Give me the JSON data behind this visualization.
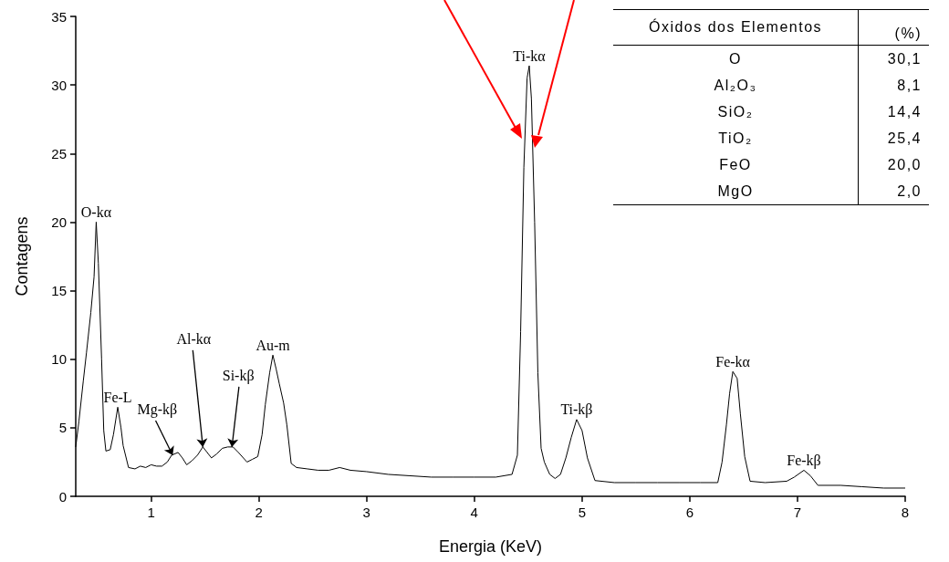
{
  "chart_data": [
    {
      "type": "line",
      "xlabel": "Energia (KeV)",
      "ylabel": "Contagens",
      "x": [
        0.3,
        0.33,
        0.37,
        0.4,
        0.44,
        0.47,
        0.49,
        0.51,
        0.54,
        0.56,
        0.58,
        0.62,
        0.65,
        0.69,
        0.72,
        0.74,
        0.79,
        0.85,
        0.9,
        0.95,
        1.0,
        1.05,
        1.1,
        1.15,
        1.19,
        1.25,
        1.29,
        1.33,
        1.38,
        1.43,
        1.48,
        1.52,
        1.56,
        1.61,
        1.66,
        1.71,
        1.76,
        1.81,
        1.89,
        1.94,
        1.99,
        2.03,
        2.06,
        2.1,
        2.13,
        2.16,
        2.19,
        2.23,
        2.26,
        2.3,
        2.35,
        2.45,
        2.55,
        2.65,
        2.75,
        2.85,
        3.0,
        3.2,
        3.4,
        3.6,
        3.8,
        4.0,
        4.2,
        4.35,
        4.4,
        4.43,
        4.46,
        4.49,
        4.51,
        4.53,
        4.56,
        4.59,
        4.62,
        4.65,
        4.7,
        4.75,
        4.8,
        4.85,
        4.9,
        4.95,
        5.0,
        5.05,
        5.12,
        5.3,
        5.5,
        5.7,
        5.9,
        6.1,
        6.26,
        6.3,
        6.34,
        6.37,
        6.4,
        6.44,
        6.47,
        6.51,
        6.56,
        6.7,
        6.9,
        6.97,
        7.06,
        7.12,
        7.19,
        7.4,
        7.6,
        7.8,
        8.0
      ],
      "series": [
        {
          "color": "#000000",
          "values": [
            3.6,
            5.5,
            8.4,
            10.5,
            13.4,
            16,
            20,
            17,
            10,
            4.8,
            3.3,
            3.4,
            4.5,
            6.5,
            5,
            3.7,
            2.1,
            2.0,
            2.2,
            2.1,
            2.3,
            2.2,
            2.2,
            2.5,
            3.0,
            3.2,
            2.8,
            2.3,
            2.6,
            3.0,
            3.6,
            3.2,
            2.8,
            3.1,
            3.5,
            3.6,
            3.6,
            3.2,
            2.5,
            2.7,
            2.9,
            4.5,
            6.7,
            9,
            10.3,
            9.3,
            8.2,
            6.8,
            5.2,
            2.4,
            2.1,
            2.0,
            1.9,
            1.9,
            2.1,
            1.9,
            1.8,
            1.6,
            1.5,
            1.4,
            1.4,
            1.4,
            1.4,
            1.6,
            3,
            12,
            24,
            30.5,
            31.4,
            29,
            20,
            9,
            3.5,
            2.5,
            1.6,
            1.3,
            1.6,
            2.8,
            4.3,
            5.6,
            4.8,
            2.8,
            1.15,
            1.0,
            1.0,
            1.0,
            1.0,
            1.0,
            1.0,
            2.5,
            5.2,
            7.5,
            9.1,
            8.6,
            6,
            2.9,
            1.1,
            1.0,
            1.1,
            1.4,
            1.9,
            1.5,
            0.8,
            0.8,
            0.7,
            0.6,
            0.6
          ]
        }
      ],
      "xlim": [
        0.3,
        8
      ],
      "xticks": [
        1,
        2,
        3,
        4,
        5,
        6,
        7,
        8
      ],
      "ylim": [
        0,
        35
      ],
      "yticks": [
        0,
        5,
        10,
        15,
        20,
        25,
        30,
        35
      ],
      "grid": false,
      "marker": "none",
      "line_style": "solid",
      "annotations": [
        {
          "text": "O-kα",
          "x": 0.49,
          "y": 20
        },
        {
          "text": "Fe-L",
          "x": 0.69,
          "y": 6.5
        },
        {
          "text": "Mg-kβ",
          "x": 1.2,
          "y": 3.0
        },
        {
          "text": "Al-kα",
          "x": 1.48,
          "y": 3.6
        },
        {
          "text": "Si-kβ",
          "x": 1.75,
          "y": 3.6
        },
        {
          "text": "Au-m",
          "x": 2.13,
          "y": 10.3
        },
        {
          "text": "Ti-kα",
          "x": 4.51,
          "y": 31.4
        },
        {
          "text": "Ti-kβ",
          "x": 4.95,
          "y": 5.6
        },
        {
          "text": "Fe-kα",
          "x": 6.4,
          "y": 9.1
        },
        {
          "text": "Fe-kβ",
          "x": 7.06,
          "y": 1.9
        }
      ]
    },
    {
      "type": "other",
      "xlabel": "Óxidos dos Elementos",
      "ylabel": "(%)",
      "categories": [
        "O",
        "Al₂O₃",
        "SiO₂",
        "TiO₂",
        "FeO",
        "MgO"
      ],
      "value_labels": [
        "30,1",
        "8,1",
        "14,4",
        "25,4",
        "20,0",
        "2,0"
      ]
    }
  ]
}
